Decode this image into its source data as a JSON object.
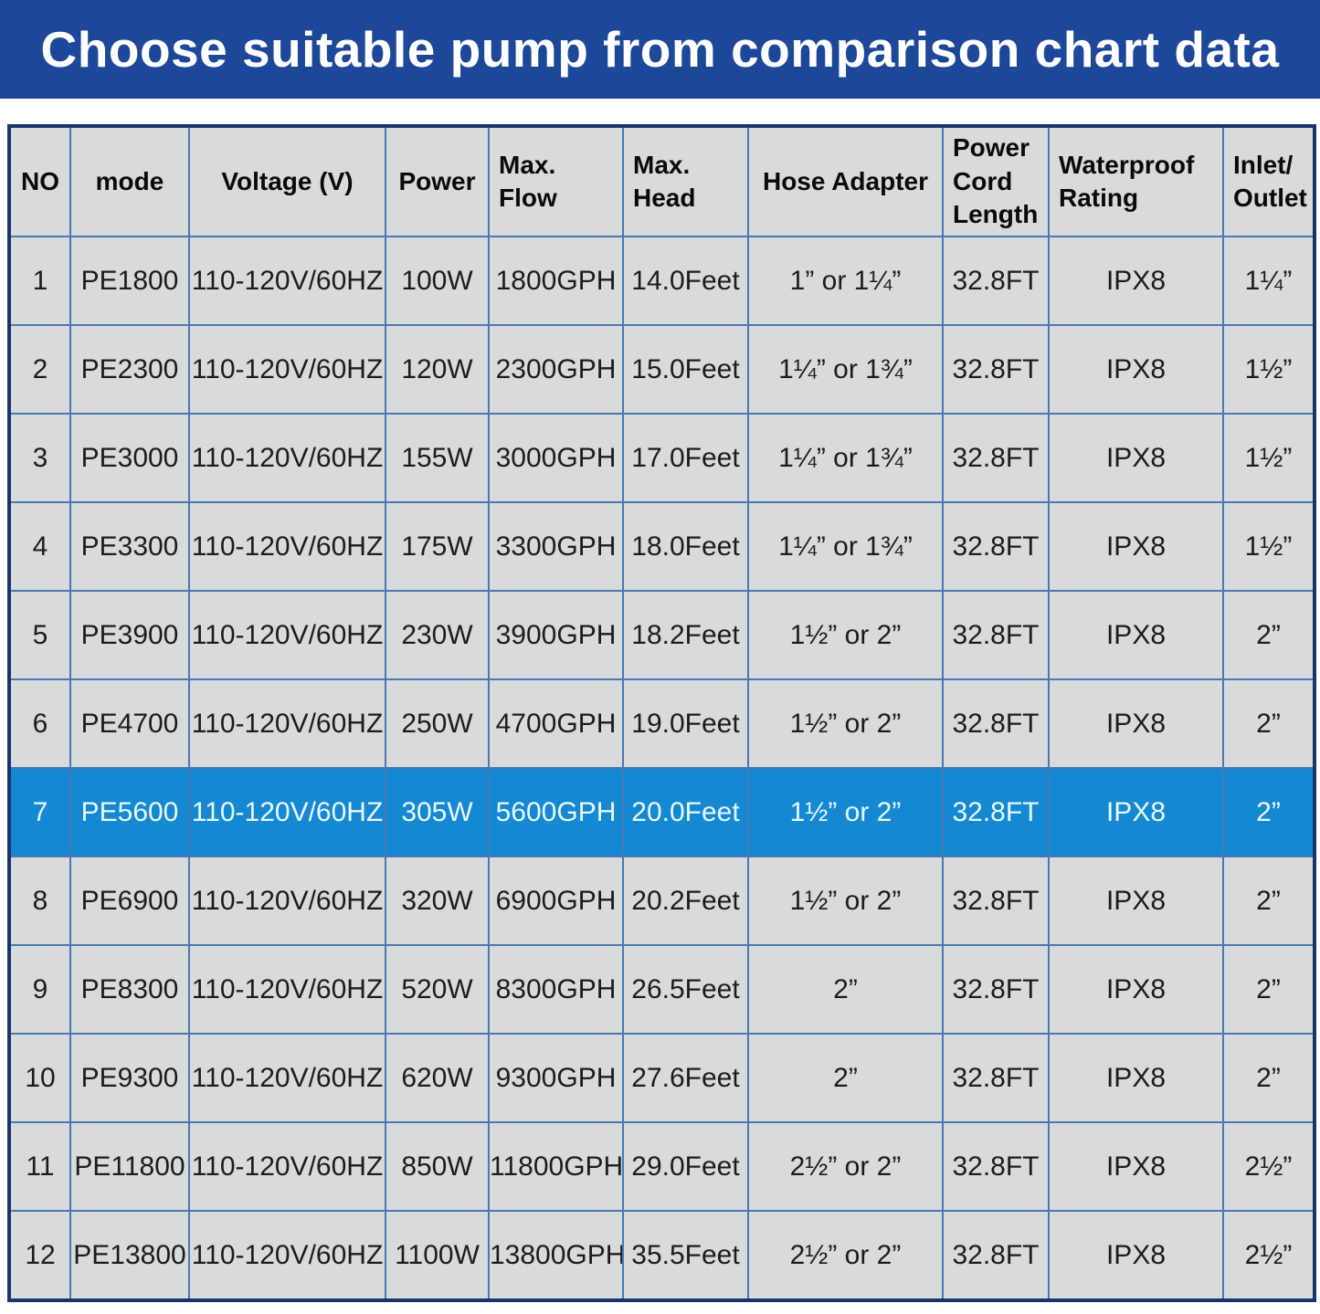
{
  "banner": {
    "title": "Choose suitable pump from comparison chart data"
  },
  "colors": {
    "banner_bg": "#1d4899",
    "banner_text": "#ffffff",
    "cell_bg": "#d9dadc",
    "grid_line": "#4a78b6",
    "outer_border": "#17356b",
    "highlight_bg": "#1489d2",
    "highlight_text": "#e9f7ff",
    "header_text": "#0a0a0a",
    "cell_text": "#1c1c1c"
  },
  "chart_data": {
    "type": "table",
    "title": "Choose suitable pump from comparison chart data",
    "columns": [
      "NO",
      "mode",
      "Voltage (V)",
      "Power",
      "Max. Flow",
      "Max. Head",
      "Hose Adapter",
      "Power Cord Length",
      "Waterproof Rating",
      "Inlet/Outlet"
    ],
    "header_labels": [
      "NO",
      "mode",
      "Voltage (V)",
      "Power",
      "Max.\nFlow",
      "Max.\nHead",
      "Hose Adapter",
      "Power\nCord\nLength",
      "Waterproof\nRating",
      "Inlet/\nOutlet"
    ],
    "rows": [
      [
        "1",
        "PE1800",
        "110-120V/60HZ",
        "100W",
        "1800GPH",
        "14.0Feet",
        "1” or 1¼”",
        "32.8FT",
        "IPX8",
        "1¼”"
      ],
      [
        "2",
        "PE2300",
        "110-120V/60HZ",
        "120W",
        "2300GPH",
        "15.0Feet",
        "1¼” or 1¾”",
        "32.8FT",
        "IPX8",
        "1½”"
      ],
      [
        "3",
        "PE3000",
        "110-120V/60HZ",
        "155W",
        "3000GPH",
        "17.0Feet",
        "1¼” or 1¾”",
        "32.8FT",
        "IPX8",
        "1½”"
      ],
      [
        "4",
        "PE3300",
        "110-120V/60HZ",
        "175W",
        "3300GPH",
        "18.0Feet",
        "1¼” or 1¾”",
        "32.8FT",
        "IPX8",
        "1½”"
      ],
      [
        "5",
        "PE3900",
        "110-120V/60HZ",
        "230W",
        "3900GPH",
        "18.2Feet",
        "1½” or 2”",
        "32.8FT",
        "IPX8",
        "2”"
      ],
      [
        "6",
        "PE4700",
        "110-120V/60HZ",
        "250W",
        "4700GPH",
        "19.0Feet",
        "1½” or 2”",
        "32.8FT",
        "IPX8",
        "2”"
      ],
      [
        "7",
        "PE5600",
        "110-120V/60HZ",
        "305W",
        "5600GPH",
        "20.0Feet",
        "1½” or 2”",
        "32.8FT",
        "IPX8",
        "2”"
      ],
      [
        "8",
        "PE6900",
        "110-120V/60HZ",
        "320W",
        "6900GPH",
        "20.2Feet",
        "1½” or 2”",
        "32.8FT",
        "IPX8",
        "2”"
      ],
      [
        "9",
        "PE8300",
        "110-120V/60HZ",
        "520W",
        "8300GPH",
        "26.5Feet",
        "2”",
        "32.8FT",
        "IPX8",
        "2”"
      ],
      [
        "10",
        "PE9300",
        "110-120V/60HZ",
        "620W",
        "9300GPH",
        "27.6Feet",
        "2”",
        "32.8FT",
        "IPX8",
        "2”"
      ],
      [
        "11",
        "PE11800",
        "110-120V/60HZ",
        "850W",
        "11800GPH",
        "29.0Feet",
        "2½” or 2”",
        "32.8FT",
        "IPX8",
        "2½”"
      ],
      [
        "12",
        "PE13800",
        "110-120V/60HZ",
        "1100W",
        "13800GPH",
        "35.5Feet",
        "2½” or 2”",
        "32.8FT",
        "IPX8",
        "2½”"
      ]
    ],
    "highlighted_row_index": 6,
    "highlighted_row_model": "PE5600",
    "legend_position": "none",
    "grid": true
  }
}
